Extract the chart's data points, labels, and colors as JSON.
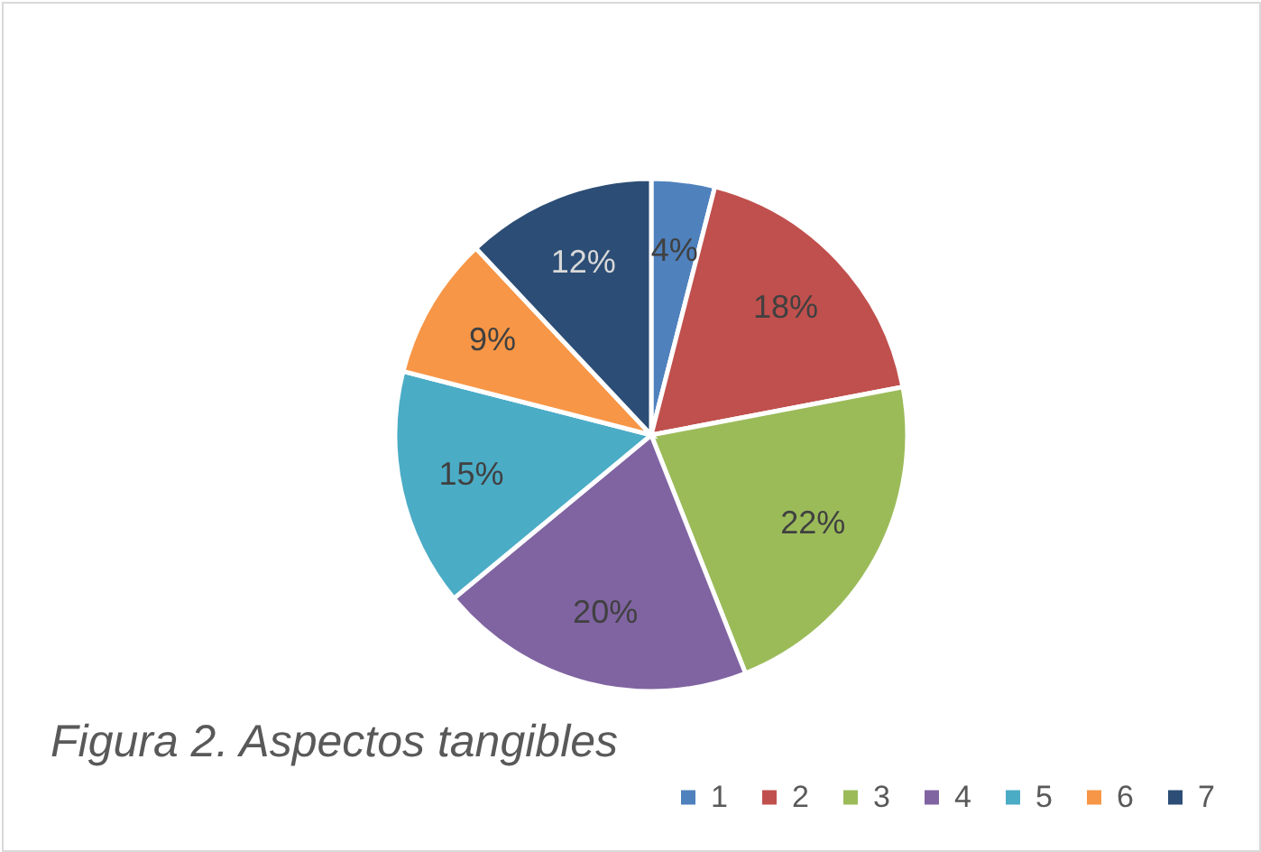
{
  "chart_data": {
    "type": "pie",
    "categories": [
      "1",
      "2",
      "3",
      "4",
      "5",
      "6",
      "7"
    ],
    "values": [
      4,
      18,
      22,
      20,
      15,
      9,
      12
    ],
    "value_labels": [
      "4%",
      "18%",
      "22%",
      "20%",
      "15%",
      "9%",
      "12%"
    ],
    "colors": [
      "#4f81bd",
      "#c0504d",
      "#9bbb59",
      "#8064a2",
      "#4bacc6",
      "#f79646",
      "#2c4d75"
    ],
    "legend": "bottom",
    "annotations": [
      "Figura 2. Aspectos tangibles"
    ]
  }
}
